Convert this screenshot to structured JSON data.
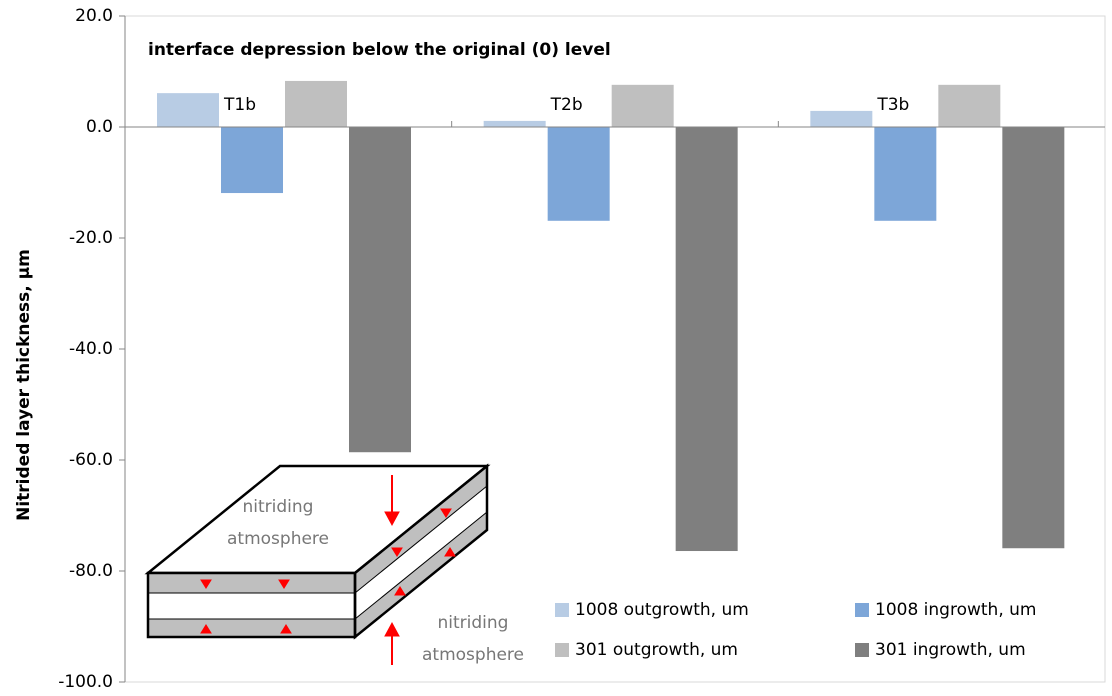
{
  "chart_data": {
    "type": "bar",
    "title": "interface depression below the original (0) level",
    "y_label": "Nitrided layer thickness, µm",
    "categories": [
      "T1b",
      "T2b",
      "T3b"
    ],
    "series": [
      {
        "name": "1008 outgrowth, um",
        "color": "#b8cce4",
        "values": [
          6.1,
          1.1,
          2.9
        ]
      },
      {
        "name": "1008 ingrowth, um",
        "color": "#7da6d8",
        "values": [
          -11.9,
          -16.9,
          -16.9
        ]
      },
      {
        "name": "301 outgrowth, um",
        "color": "#bfbfbf",
        "values": [
          8.3,
          7.6,
          7.6
        ]
      },
      {
        "name": "301 ingrowth, um",
        "color": "#7f7f7f",
        "values": [
          -58.6,
          -76.4,
          -75.9
        ]
      }
    ],
    "ylim": [
      -100,
      20
    ],
    "yticks": [
      {
        "value": -100,
        "label": "-100.0"
      },
      {
        "value": -80,
        "label": "-80.0"
      },
      {
        "value": -60,
        "label": "-60.0"
      },
      {
        "value": -40,
        "label": "-40.0"
      },
      {
        "value": -20,
        "label": "-20.0"
      },
      {
        "value": 0,
        "label": "0.0"
      },
      {
        "value": 20,
        "label": "20.0"
      }
    ],
    "legend": "lower right",
    "annotations": [
      [
        "nitriding",
        "atmosphere"
      ],
      [
        "nitriding",
        "atmosphere"
      ]
    ]
  }
}
